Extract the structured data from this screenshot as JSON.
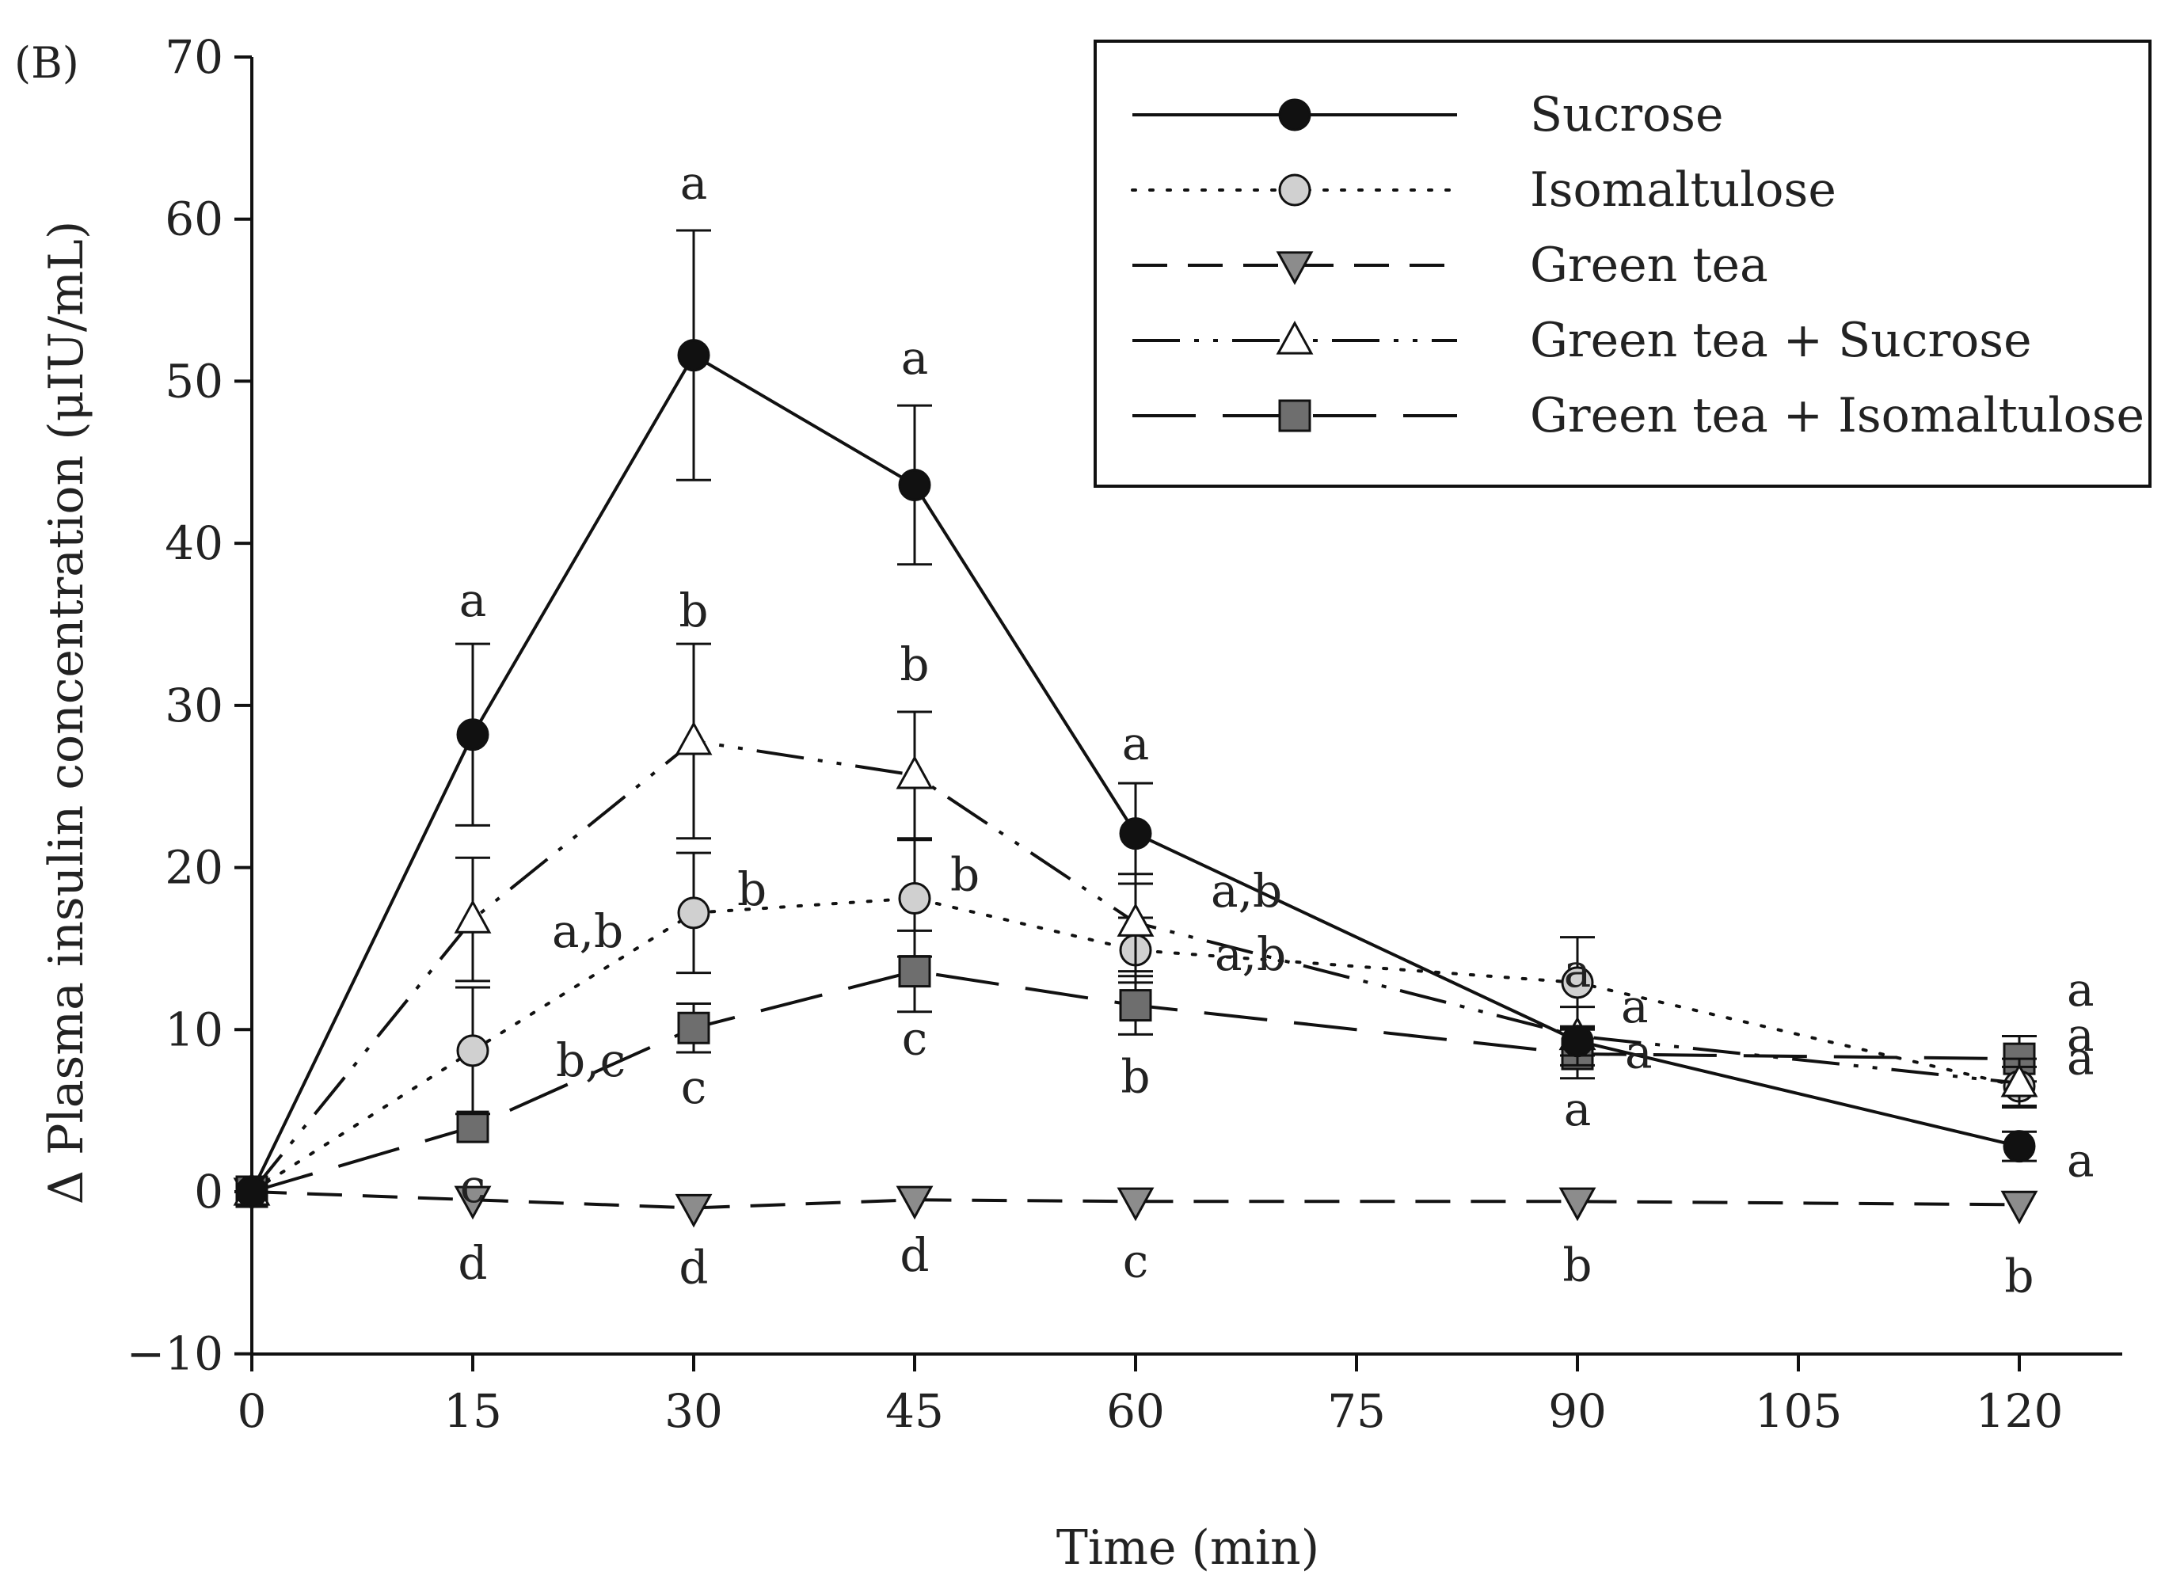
{
  "panel_label": "(B)",
  "chart_data": {
    "type": "line",
    "title": "",
    "xlabel": "Time (min)",
    "ylabel": "Δ Plasma insulin concentration (μIU/mL)",
    "xlim": [
      0,
      130
    ],
    "ylim": [
      -10,
      70
    ],
    "x_ticks": [
      0,
      15,
      30,
      45,
      60,
      75,
      90,
      105,
      120
    ],
    "x_tick_labels": [
      "0",
      "15",
      "30",
      "45",
      "60",
      "75",
      "90",
      "105",
      "120"
    ],
    "y_ticks": [
      -10,
      0,
      10,
      20,
      30,
      40,
      50,
      60,
      70
    ],
    "y_tick_labels": [
      "−10",
      "0",
      "10",
      "20",
      "30",
      "40",
      "50",
      "60",
      "70"
    ],
    "legend_position": "top-right",
    "x": [
      0,
      15,
      30,
      45,
      60,
      90,
      120
    ],
    "series": [
      {
        "name": "Sucrose",
        "marker": "circle",
        "fill": "#111111",
        "line": "solid",
        "values": [
          0,
          28.2,
          51.6,
          43.6,
          22.1,
          9.3,
          2.8
        ],
        "errors": [
          0,
          5.6,
          7.7,
          4.9,
          3.1,
          0.9,
          0.9
        ],
        "letters": [
          "",
          "a",
          "a",
          "a",
          "a",
          "a",
          "a"
        ]
      },
      {
        "name": "Isomaltulose",
        "marker": "circle",
        "fill": "#d0d0d0",
        "line": "dotted",
        "values": [
          0,
          8.7,
          17.2,
          18.1,
          14.9,
          12.9,
          6.5
        ],
        "errors": [
          0,
          3.9,
          3.7,
          3.6,
          2.0,
          2.8,
          1.2
        ],
        "letters": [
          "",
          "b,c",
          "b",
          "b",
          "a,b",
          "a",
          "a"
        ]
      },
      {
        "name": "Green tea",
        "marker": "triangle-down",
        "fill": "#8c8c8c",
        "line": "dashed",
        "values": [
          0,
          -0.5,
          -1.0,
          -0.5,
          -0.6,
          -0.6,
          -0.8
        ],
        "errors": [
          0,
          0,
          0,
          0,
          0,
          0,
          0
        ],
        "letters": [
          "",
          "d",
          "d",
          "d",
          "c",
          "b",
          "b"
        ]
      },
      {
        "name": "Green tea + Sucrose",
        "marker": "triangle-up",
        "fill": "#ffffff",
        "line": "dash-dot-dot",
        "values": [
          0,
          16.8,
          27.8,
          25.7,
          16.6,
          9.6,
          6.7
        ],
        "errors": [
          0,
          3.8,
          6.0,
          3.9,
          3.0,
          1.8,
          1.5
        ],
        "letters": [
          "",
          "a,b",
          "b",
          "b",
          "a,b",
          "a",
          "a"
        ]
      },
      {
        "name": "Green tea + Isomaltulose",
        "marker": "square",
        "fill": "#6e6e6e",
        "line": "long-dash",
        "values": [
          0,
          4.0,
          10.1,
          13.6,
          11.5,
          8.5,
          8.2
        ],
        "errors": [
          0,
          0,
          1.5,
          2.5,
          1.8,
          1.5,
          1.4
        ],
        "letters": [
          "",
          "c",
          "c",
          "c",
          "b",
          "a",
          "a"
        ]
      }
    ]
  }
}
